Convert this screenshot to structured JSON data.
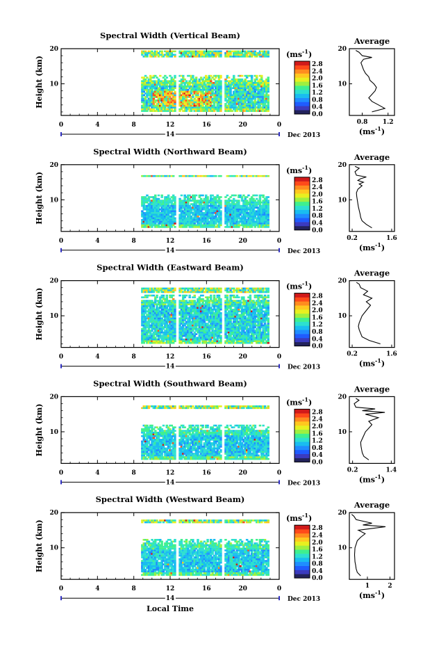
{
  "colors": {
    "scale": [
      "#23235c",
      "#3b3bbf",
      "#1f5cff",
      "#1f8dff",
      "#19bdf0",
      "#2de0d0",
      "#3ff08f",
      "#9ff03f",
      "#e8f020",
      "#ffc81f",
      "#ff8c1f",
      "#ff4a1a",
      "#d11a1a"
    ]
  },
  "chart_data": [
    {
      "type": "heatmap",
      "title": "Spectral Width (Vertical Beam)",
      "ylabel": "Height (km)",
      "yticks": [
        "20",
        "10"
      ],
      "xticks": [
        "0",
        "4",
        "8",
        "12",
        "16",
        "20",
        "0"
      ],
      "date_marker": "14",
      "date_label": "Dec 2013",
      "colorbar_unit_base": "(ms",
      "colorbar_unit_exp": "-1",
      "colorbar_close": ")",
      "colorbar_ticks": [
        "2.8",
        "2.4",
        "2.0",
        "1.6",
        "1.2",
        "0.8",
        "0.4",
        "0.0"
      ],
      "xlim": [
        0,
        24
      ],
      "ylim": [
        1,
        20
      ],
      "data_start_hour": 8.8,
      "data_end_hour": 22.8,
      "gap_hours": [
        12.6,
        17.7
      ],
      "main_top_km": 12,
      "upper_band_km": [
        17.5,
        19.2
      ],
      "intensity": 1.0,
      "avg_title": "Average",
      "avg_xticks": [
        "0.8",
        "1.2"
      ],
      "avg_xlim": [
        0.6,
        1.3
      ],
      "avg_xlabel_base": "(ms",
      "avg_xlabel_exp": "-1",
      "avg_xlabel_close": ")",
      "avg_profile": [
        [
          0.95,
          2
        ],
        [
          1.15,
          3
        ],
        [
          1.05,
          4
        ],
        [
          0.95,
          5
        ],
        [
          0.9,
          6
        ],
        [
          0.95,
          7
        ],
        [
          1.0,
          8
        ],
        [
          1.02,
          9
        ],
        [
          0.98,
          10
        ],
        [
          0.92,
          11
        ],
        [
          0.9,
          12
        ],
        [
          0.85,
          13
        ],
        [
          0.82,
          14
        ],
        [
          0.8,
          15
        ],
        [
          0.78,
          16
        ],
        [
          0.82,
          17
        ],
        [
          0.95,
          17.5
        ],
        [
          0.8,
          18
        ],
        [
          0.75,
          19
        ],
        [
          0.7,
          19.5
        ]
      ]
    },
    {
      "type": "heatmap",
      "title": "Spectral Width (Northward Beam)",
      "ylabel": "Height (km)",
      "yticks": [
        "20",
        "10"
      ],
      "xticks": [
        "0",
        "4",
        "8",
        "12",
        "16",
        "20",
        "0"
      ],
      "date_marker": "14",
      "date_label": "Dec 2013",
      "colorbar_unit_base": "(ms",
      "colorbar_unit_exp": "-1",
      "colorbar_close": ")",
      "colorbar_ticks": [
        "2.8",
        "2.4",
        "2.0",
        "1.6",
        "1.2",
        "0.8",
        "0.4",
        "0.0"
      ],
      "xlim": [
        0,
        24
      ],
      "ylim": [
        1,
        20
      ],
      "data_start_hour": 8.8,
      "data_end_hour": 22.8,
      "gap_hours": [
        12.6,
        17.7
      ],
      "main_top_km": 11,
      "upper_band_km": [
        16.2,
        16.8
      ],
      "intensity": 0.55,
      "avg_title": "Average",
      "avg_xticks": [
        "0.2",
        "1.6"
      ],
      "avg_xlim": [
        0.1,
        1.7
      ],
      "avg_xlabel_base": "(ms",
      "avg_xlabel_exp": "-1",
      "avg_xlabel_close": ")",
      "avg_profile": [
        [
          0.9,
          2
        ],
        [
          0.7,
          3
        ],
        [
          0.55,
          4
        ],
        [
          0.5,
          5
        ],
        [
          0.48,
          6
        ],
        [
          0.45,
          7
        ],
        [
          0.42,
          8
        ],
        [
          0.4,
          9
        ],
        [
          0.38,
          10
        ],
        [
          0.36,
          11
        ],
        [
          0.35,
          12
        ],
        [
          0.4,
          13
        ],
        [
          0.55,
          14
        ],
        [
          0.45,
          14.5
        ],
        [
          0.6,
          15
        ],
        [
          0.4,
          15.5
        ],
        [
          0.5,
          16
        ],
        [
          0.7,
          16.5
        ],
        [
          0.35,
          17
        ],
        [
          0.3,
          18
        ],
        [
          0.45,
          19
        ],
        [
          0.3,
          19.5
        ]
      ]
    },
    {
      "type": "heatmap",
      "title": "Spectral Width (Eastward Beam)",
      "ylabel": "Height (km)",
      "yticks": [
        "20",
        "10"
      ],
      "xticks": [
        "0",
        "4",
        "8",
        "12",
        "16",
        "20",
        "0"
      ],
      "date_marker": "14",
      "date_label": "Dec 2013",
      "colorbar_unit_base": "(ms",
      "colorbar_unit_exp": "-1",
      "colorbar_close": ")",
      "colorbar_ticks": [
        "2.8",
        "2.4",
        "2.0",
        "1.6",
        "1.2",
        "0.8",
        "0.4",
        "0.0"
      ],
      "xlim": [
        0,
        24
      ],
      "ylim": [
        1,
        20
      ],
      "data_start_hour": 8.8,
      "data_end_hour": 22.8,
      "gap_hours": [
        12.6,
        17.7
      ],
      "main_top_km": 15.5,
      "upper_band_km": [
        16.5,
        17.5
      ],
      "intensity": 0.75,
      "avg_title": "Average",
      "avg_xticks": [
        "0.2",
        "1.6"
      ],
      "avg_xlim": [
        0.1,
        1.7
      ],
      "avg_xlabel_base": "(ms",
      "avg_xlabel_exp": "-1",
      "avg_xlabel_close": ")",
      "avg_profile": [
        [
          1.2,
          2
        ],
        [
          0.8,
          3
        ],
        [
          0.55,
          4
        ],
        [
          0.5,
          5
        ],
        [
          0.45,
          6
        ],
        [
          0.42,
          7
        ],
        [
          0.45,
          8
        ],
        [
          0.5,
          9
        ],
        [
          0.55,
          10
        ],
        [
          0.65,
          11
        ],
        [
          0.75,
          12
        ],
        [
          0.85,
          13
        ],
        [
          0.7,
          14
        ],
        [
          0.9,
          15
        ],
        [
          0.6,
          16
        ],
        [
          0.75,
          17
        ],
        [
          0.5,
          18
        ],
        [
          0.45,
          19
        ],
        [
          0.35,
          19.5
        ]
      ]
    },
    {
      "type": "heatmap",
      "title": "Spectral Width (Southward Beam)",
      "ylabel": "Height (km)",
      "yticks": [
        "20",
        "10"
      ],
      "xticks": [
        "0",
        "4",
        "8",
        "12",
        "16",
        "20",
        "0"
      ],
      "date_marker": "14",
      "date_label": "Dec 2013",
      "colorbar_unit_base": "(ms",
      "colorbar_unit_exp": "-1",
      "colorbar_close": ")",
      "colorbar_ticks": [
        "2.8",
        "2.4",
        "2.0",
        "1.6",
        "1.2",
        "0.8",
        "0.4",
        "0.0"
      ],
      "xlim": [
        0,
        24
      ],
      "ylim": [
        1,
        20
      ],
      "data_start_hour": 8.8,
      "data_end_hour": 22.8,
      "gap_hours": [
        12.6,
        17.7
      ],
      "main_top_km": 11.5,
      "upper_band_km": [
        16.5,
        17.2
      ],
      "intensity": 0.6,
      "avg_title": "Average",
      "avg_xticks": [
        "0.2",
        "1.4"
      ],
      "avg_xlim": [
        0.1,
        1.5
      ],
      "avg_xlabel_base": "(ms",
      "avg_xlabel_exp": "-1",
      "avg_xlabel_close": ")",
      "avg_profile": [
        [
          0.7,
          2
        ],
        [
          0.55,
          3
        ],
        [
          0.5,
          4
        ],
        [
          0.48,
          5
        ],
        [
          0.46,
          6
        ],
        [
          0.45,
          7
        ],
        [
          0.5,
          8
        ],
        [
          0.55,
          9
        ],
        [
          0.6,
          10
        ],
        [
          0.7,
          11
        ],
        [
          0.8,
          12
        ],
        [
          0.7,
          13
        ],
        [
          1.0,
          14
        ],
        [
          0.6,
          15
        ],
        [
          1.2,
          15.5
        ],
        [
          0.5,
          16
        ],
        [
          0.9,
          16.5
        ],
        [
          0.3,
          17
        ],
        [
          0.25,
          18
        ],
        [
          0.4,
          19
        ],
        [
          0.3,
          19.5
        ]
      ]
    },
    {
      "type": "heatmap",
      "title": "Spectral Width (Westward Beam)",
      "ylabel": "Height (km)",
      "yticks": [
        "20",
        "10"
      ],
      "xticks": [
        "0",
        "4",
        "8",
        "12",
        "16",
        "20",
        "0"
      ],
      "date_marker": "14",
      "date_label": "Dec 2013",
      "colorbar_unit_base": "(ms",
      "colorbar_unit_exp": "-1",
      "colorbar_close": ")",
      "colorbar_ticks": [
        "2.8",
        "2.4",
        "2.0",
        "1.6",
        "1.2",
        "0.8",
        "0.4",
        "0.0"
      ],
      "xlim": [
        0,
        24
      ],
      "ylim": [
        1,
        20
      ],
      "data_start_hour": 8.8,
      "data_end_hour": 22.8,
      "gap_hours": [
        12.6,
        17.7
      ],
      "main_top_km": 12,
      "upper_band_km": [
        17.0,
        17.5
      ],
      "intensity": 0.6,
      "avg_title": "Average",
      "avg_xticks": [
        "1",
        "2"
      ],
      "avg_xlim": [
        0.2,
        2.2
      ],
      "avg_xlabel_base": "(ms",
      "avg_xlabel_exp": "-1",
      "avg_xlabel_close": ")",
      "avg_profile": [
        [
          0.7,
          2
        ],
        [
          0.55,
          3
        ],
        [
          0.5,
          4
        ],
        [
          0.48,
          5
        ],
        [
          0.45,
          6
        ],
        [
          0.44,
          7
        ],
        [
          0.43,
          8
        ],
        [
          0.44,
          9
        ],
        [
          0.45,
          10
        ],
        [
          0.5,
          11
        ],
        [
          0.55,
          12
        ],
        [
          0.7,
          13
        ],
        [
          0.9,
          14
        ],
        [
          0.6,
          15
        ],
        [
          1.8,
          16
        ],
        [
          0.8,
          16.5
        ],
        [
          1.2,
          17
        ],
        [
          0.5,
          18
        ],
        [
          0.4,
          19
        ],
        [
          0.3,
          19.5
        ]
      ]
    }
  ],
  "bottom_xlabel": "Local Time"
}
